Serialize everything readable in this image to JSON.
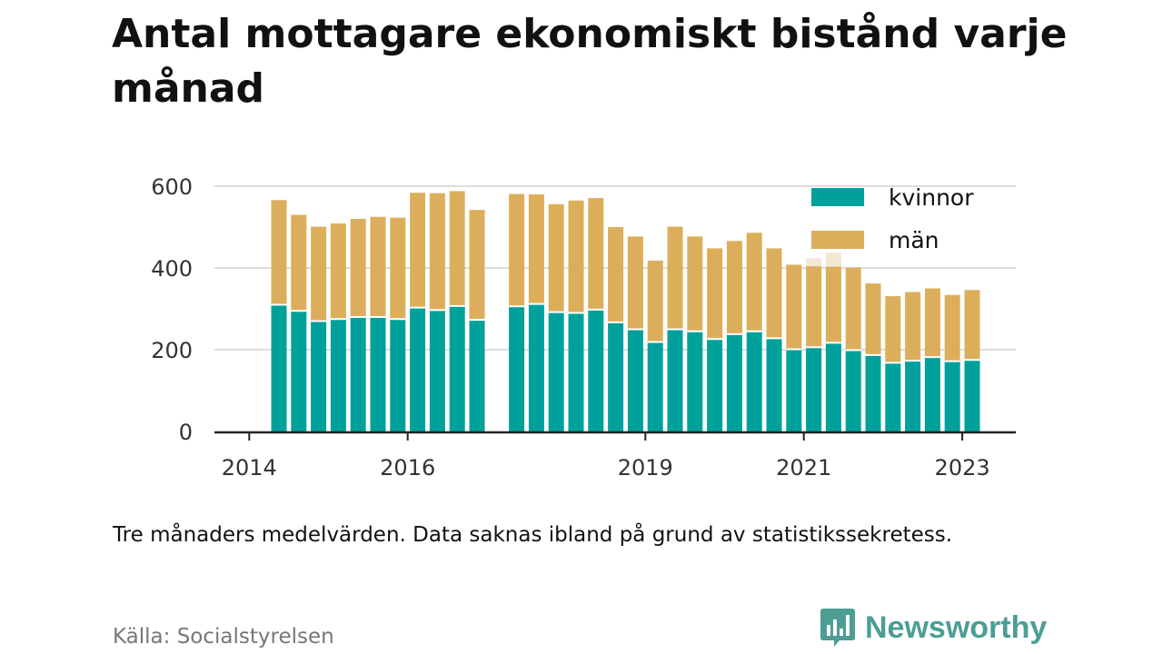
{
  "title": "Antal mottagare ekonomiskt bistånd varje månad",
  "note": "Tre månaders medelvärden. Data saknas ibland på grund av statistikssekretess.",
  "source": "Källa: Socialstyrelsen",
  "brand": "Newsworthy",
  "colors": {
    "kvinnor": "#00a19a",
    "man": "#dcae5c",
    "grid": "#dddddd",
    "axis": "#222222"
  },
  "chart_data": {
    "type": "bar",
    "stacked": true,
    "ylim": [
      0,
      600
    ],
    "yticks": [
      0,
      200,
      400,
      600
    ],
    "xticks": [
      "2014",
      "2016",
      "2019",
      "2021",
      "2023"
    ],
    "legend": "top-right",
    "grid": true,
    "x": [
      "2014-Q2",
      "2014-Q3",
      "2014-Q4",
      "2015-Q1",
      "2015-Q2",
      "2015-Q3",
      "2015-Q4",
      "2016-Q1",
      "2016-Q2",
      "2016-Q3",
      "2016-Q4",
      "2017-Q1",
      "2017-Q2",
      "2017-Q3",
      "2017-Q4",
      "2018-Q1",
      "2018-Q2",
      "2018-Q3",
      "2018-Q4",
      "2019-Q1",
      "2019-Q2",
      "2019-Q3",
      "2019-Q4",
      "2020-Q1",
      "2020-Q2",
      "2020-Q3",
      "2020-Q4",
      "2021-Q1",
      "2021-Q2",
      "2021-Q3",
      "2021-Q4",
      "2022-Q1",
      "2022-Q2",
      "2022-Q3",
      "2022-Q4",
      "2023-Q1"
    ],
    "series": [
      {
        "name": "kvinnor",
        "values": [
          310,
          295,
          270,
          275,
          280,
          280,
          275,
          303,
          297,
          307,
          273,
          null,
          306,
          312,
          292,
          290,
          298,
          267,
          250,
          219,
          250,
          245,
          226,
          238,
          245,
          228,
          201,
          206,
          217,
          199,
          187,
          168,
          173,
          182,
          172,
          175
        ]
      },
      {
        "name": "män",
        "values": [
          256,
          235,
          231,
          234,
          240,
          245,
          248,
          281,
          286,
          281,
          269,
          null,
          275,
          268,
          264,
          275,
          273,
          233,
          227,
          199,
          251,
          232,
          222,
          228,
          241,
          220,
          207,
          198,
          186,
          202,
          175,
          163,
          168,
          168,
          162,
          171
        ]
      }
    ],
    "faint_overlay": [
      null,
      null,
      null,
      null,
      null,
      null,
      null,
      null,
      null,
      null,
      null,
      null,
      null,
      null,
      null,
      null,
      null,
      null,
      null,
      null,
      null,
      null,
      null,
      null,
      null,
      null,
      null,
      424,
      438,
      null,
      null,
      null,
      null,
      null,
      null,
      null
    ]
  }
}
